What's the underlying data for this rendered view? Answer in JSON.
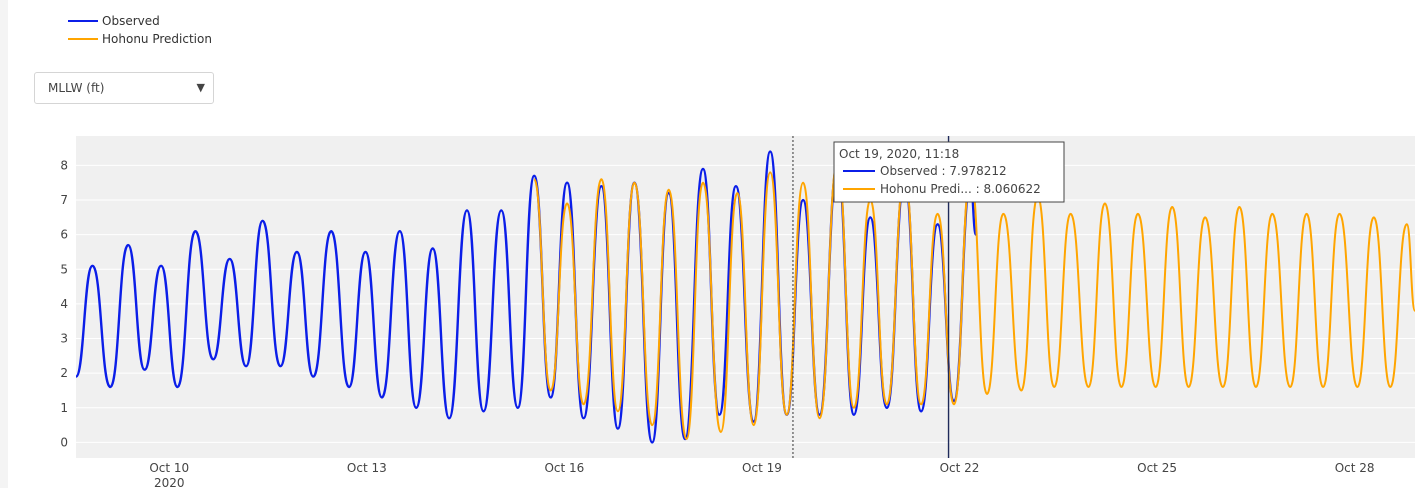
{
  "legend": [
    {
      "label": "Observed",
      "color": "#0b1ee8"
    },
    {
      "label": "Hohonu Prediction",
      "color": "#ffa500"
    }
  ],
  "datum_select": {
    "value": "MLLW (ft)"
  },
  "hover": {
    "title": "Oct 19, 2020, 11:18",
    "observed": "Observed : 7.978212",
    "predicted": "Hohonu Predi... : 8.060622"
  },
  "chart_data": {
    "type": "line",
    "x_range": [
      "2020-10-08T14:00",
      "2020-10-28T22:00"
    ],
    "ylim": [
      -0.45,
      8.85
    ],
    "y_ticks": [
      0,
      1,
      2,
      3,
      4,
      5,
      6,
      7,
      8
    ],
    "x_ticks": [
      {
        "date": "2020-10-10",
        "label": "Oct 10",
        "sublabel": "2020"
      },
      {
        "date": "2020-10-13",
        "label": "Oct 13"
      },
      {
        "date": "2020-10-16",
        "label": "Oct 16"
      },
      {
        "date": "2020-10-19",
        "label": "Oct 19"
      },
      {
        "date": "2020-10-22",
        "label": "Oct 22"
      },
      {
        "date": "2020-10-25",
        "label": "Oct 25"
      },
      {
        "date": "2020-10-28",
        "label": "Oct 28"
      }
    ],
    "plot_background": "#f0f0f0",
    "hover_time": "2020-10-19T11:18",
    "now_time": "2020-10-21T20:00",
    "series": [
      {
        "name": "Observed",
        "color": "#0b1ee8",
        "points": [
          [
            "2020-10-08T14:00",
            1.9
          ],
          [
            "2020-10-08T20:00",
            5.1
          ],
          [
            "2020-10-09T02:30",
            1.6
          ],
          [
            "2020-10-09T09:00",
            5.7
          ],
          [
            "2020-10-09T15:00",
            2.1
          ],
          [
            "2020-10-09T21:00",
            5.1
          ],
          [
            "2020-10-10T03:00",
            1.6
          ],
          [
            "2020-10-10T09:30",
            6.1
          ],
          [
            "2020-10-10T16:00",
            2.4
          ],
          [
            "2020-10-10T22:00",
            5.3
          ],
          [
            "2020-10-11T04:00",
            2.2
          ],
          [
            "2020-10-11T10:00",
            6.4
          ],
          [
            "2020-10-11T16:30",
            2.2
          ],
          [
            "2020-10-11T22:30",
            5.5
          ],
          [
            "2020-10-12T04:30",
            1.9
          ],
          [
            "2020-10-12T11:00",
            6.1
          ],
          [
            "2020-10-12T17:30",
            1.6
          ],
          [
            "2020-10-12T23:30",
            5.5
          ],
          [
            "2020-10-13T05:30",
            1.3
          ],
          [
            "2020-10-13T12:00",
            6.1
          ],
          [
            "2020-10-13T18:00",
            1.0
          ],
          [
            "2020-10-14T00:00",
            5.6
          ],
          [
            "2020-10-14T06:00",
            0.7
          ],
          [
            "2020-10-14T12:30",
            6.7
          ],
          [
            "2020-10-14T18:30",
            0.9
          ],
          [
            "2020-10-15T01:00",
            6.7
          ],
          [
            "2020-10-15T07:00",
            1.0
          ],
          [
            "2020-10-15T13:00",
            7.7
          ],
          [
            "2020-10-15T19:00",
            1.3
          ],
          [
            "2020-10-16T01:00",
            7.5
          ],
          [
            "2020-10-16T07:00",
            0.7
          ],
          [
            "2020-10-16T13:30",
            7.4
          ],
          [
            "2020-10-16T19:30",
            0.4
          ],
          [
            "2020-10-17T01:30",
            7.5
          ],
          [
            "2020-10-17T08:00",
            0.0
          ],
          [
            "2020-10-17T14:00",
            7.2
          ],
          [
            "2020-10-17T20:00",
            0.1
          ],
          [
            "2020-10-18T02:30",
            7.9
          ],
          [
            "2020-10-18T08:30",
            0.8
          ],
          [
            "2020-10-18T14:30",
            7.4
          ],
          [
            "2020-10-18T21:00",
            0.6
          ],
          [
            "2020-10-19T03:00",
            8.4
          ],
          [
            "2020-10-19T09:00",
            0.8
          ],
          [
            "2020-10-19T15:00",
            7.0
          ],
          [
            "2020-10-19T21:00",
            0.8
          ],
          [
            "2020-10-20T03:30",
            8.0
          ],
          [
            "2020-10-20T09:30",
            0.8
          ],
          [
            "2020-10-20T15:30",
            6.5
          ],
          [
            "2020-10-20T21:30",
            1.0
          ],
          [
            "2020-10-21T04:00",
            7.6
          ],
          [
            "2020-10-21T10:00",
            0.9
          ],
          [
            "2020-10-21T16:00",
            6.3
          ],
          [
            "2020-10-21T22:00",
            1.2
          ],
          [
            "2020-10-22T04:00",
            7.5
          ],
          [
            "2020-10-22T06:00",
            6.0
          ]
        ]
      },
      {
        "name": "Hohonu Prediction",
        "color": "#ffa500",
        "points": [
          [
            "2020-10-15T13:00",
            7.6
          ],
          [
            "2020-10-15T19:00",
            1.5
          ],
          [
            "2020-10-16T01:00",
            6.9
          ],
          [
            "2020-10-16T07:00",
            1.1
          ],
          [
            "2020-10-16T13:30",
            7.6
          ],
          [
            "2020-10-16T19:30",
            0.9
          ],
          [
            "2020-10-17T01:30",
            7.5
          ],
          [
            "2020-10-17T08:00",
            0.5
          ],
          [
            "2020-10-17T14:00",
            7.3
          ],
          [
            "2020-10-17T20:30",
            0.1
          ],
          [
            "2020-10-18T02:30",
            7.5
          ],
          [
            "2020-10-18T09:00",
            0.3
          ],
          [
            "2020-10-18T15:00",
            7.2
          ],
          [
            "2020-10-18T21:00",
            0.5
          ],
          [
            "2020-10-19T03:00",
            7.8
          ],
          [
            "2020-10-19T09:00",
            0.8
          ],
          [
            "2020-10-19T15:00",
            7.5
          ],
          [
            "2020-10-19T21:00",
            0.7
          ],
          [
            "2020-10-20T03:30",
            8.1
          ],
          [
            "2020-10-20T09:30",
            1.0
          ],
          [
            "2020-10-20T15:30",
            7.0
          ],
          [
            "2020-10-20T21:30",
            1.1
          ],
          [
            "2020-10-21T04:00",
            7.7
          ],
          [
            "2020-10-21T10:00",
            1.1
          ],
          [
            "2020-10-21T16:00",
            6.6
          ],
          [
            "2020-10-21T22:00",
            1.1
          ],
          [
            "2020-10-22T04:00",
            7.7
          ],
          [
            "2020-10-22T10:00",
            1.4
          ],
          [
            "2020-10-22T16:00",
            6.6
          ],
          [
            "2020-10-22T22:30",
            1.5
          ],
          [
            "2020-10-23T04:30",
            7.1
          ],
          [
            "2020-10-23T10:30",
            1.6
          ],
          [
            "2020-10-23T16:30",
            6.6
          ],
          [
            "2020-10-23T23:00",
            1.6
          ],
          [
            "2020-10-24T05:00",
            6.9
          ],
          [
            "2020-10-24T11:00",
            1.6
          ],
          [
            "2020-10-24T17:00",
            6.6
          ],
          [
            "2020-10-24T23:30",
            1.6
          ],
          [
            "2020-10-25T05:30",
            6.8
          ],
          [
            "2020-10-25T11:30",
            1.6
          ],
          [
            "2020-10-25T17:30",
            6.5
          ],
          [
            "2020-10-26T00:00",
            1.6
          ],
          [
            "2020-10-26T06:00",
            6.8
          ],
          [
            "2020-10-26T12:00",
            1.6
          ],
          [
            "2020-10-26T18:00",
            6.6
          ],
          [
            "2020-10-27T00:30",
            1.6
          ],
          [
            "2020-10-27T06:30",
            6.6
          ],
          [
            "2020-10-27T12:30",
            1.6
          ],
          [
            "2020-10-27T18:30",
            6.6
          ],
          [
            "2020-10-28T01:00",
            1.6
          ],
          [
            "2020-10-28T07:00",
            6.5
          ],
          [
            "2020-10-28T13:00",
            1.6
          ],
          [
            "2020-10-28T19:00",
            6.3
          ],
          [
            "2020-10-28T22:00",
            3.8
          ]
        ]
      }
    ]
  }
}
